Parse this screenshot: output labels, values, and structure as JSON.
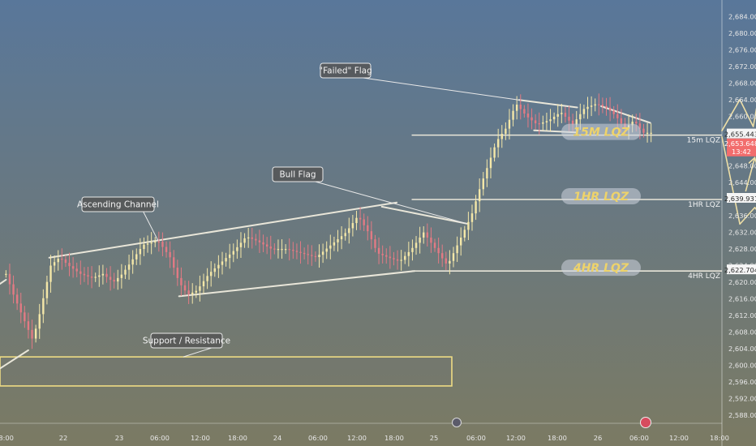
{
  "colors": {
    "bg_top": "#59779A",
    "bg_bottom": "#7B7A63",
    "up": "#F4E7A8",
    "down": "#E27A84",
    "line": "#E9E6D9",
    "lqz_label_bg": "#C5CDD8",
    "lqz_label_text": "#EED36A",
    "price_current": "#F26D6D",
    "axis_text": "#E7E7E7"
  },
  "chart_data": {
    "type": "candlestick",
    "ylim": [
      2586,
      2688
    ],
    "y_ticks": [
      "2,684.000",
      "2,680.000",
      "2,676.000",
      "2,672.000",
      "2,668.000",
      "2,664.000",
      "2,660.000",
      "2,656.000",
      "2,652.000",
      "2,648.000",
      "2,644.000",
      "2,640.000",
      "2,636.000",
      "2,632.000",
      "2,628.000",
      "2,624.000",
      "2,620.000",
      "2,616.000",
      "2,612.000",
      "2,608.000",
      "2,604.000",
      "2,600.000",
      "2,596.000",
      "2,592.000",
      "2,588.000"
    ],
    "y_tick_values": [
      2684,
      2680,
      2676,
      2672,
      2668,
      2664,
      2660,
      2656,
      2652,
      2648,
      2644,
      2640,
      2636,
      2632,
      2628,
      2624,
      2620,
      2616,
      2612,
      2608,
      2604,
      2600,
      2596,
      2592,
      2588
    ],
    "x_ticks": [
      "18:00",
      "22",
      "23",
      "06:00",
      "12:00",
      "18:00",
      "24",
      "06:00",
      "12:00",
      "18:00",
      "25",
      "06:00",
      "12:00",
      "18:00",
      "26",
      "06:00",
      "12:00",
      "18:00"
    ],
    "price_path": [
      {
        "x": 0.0,
        "y": 2622.0
      },
      {
        "x": 0.5,
        "y": 2617.0
      },
      {
        "x": 1.2,
        "y": 2611.0
      },
      {
        "x": 1.8,
        "y": 2606.0
      },
      {
        "x": 2.3,
        "y": 2613.0
      },
      {
        "x": 3.0,
        "y": 2624.0
      },
      {
        "x": 3.6,
        "y": 2626.0
      },
      {
        "x": 4.2,
        "y": 2624.0
      },
      {
        "x": 5.0,
        "y": 2622.0
      },
      {
        "x": 5.8,
        "y": 2621.0
      },
      {
        "x": 6.5,
        "y": 2622.0
      },
      {
        "x": 7.2,
        "y": 2620.0
      },
      {
        "x": 7.8,
        "y": 2622.0
      },
      {
        "x": 8.4,
        "y": 2625.0
      },
      {
        "x": 9.2,
        "y": 2629.0
      },
      {
        "x": 10.2,
        "y": 2630.0
      },
      {
        "x": 11.0,
        "y": 2626.0
      },
      {
        "x": 11.6,
        "y": 2620.0
      },
      {
        "x": 12.2,
        "y": 2617.0
      },
      {
        "x": 12.8,
        "y": 2618.0
      },
      {
        "x": 13.6,
        "y": 2622.0
      },
      {
        "x": 14.5,
        "y": 2625.0
      },
      {
        "x": 15.4,
        "y": 2628.0
      },
      {
        "x": 16.1,
        "y": 2631.0
      },
      {
        "x": 16.8,
        "y": 2630.0
      },
      {
        "x": 17.8,
        "y": 2628.0
      },
      {
        "x": 18.8,
        "y": 2628.0
      },
      {
        "x": 19.8,
        "y": 2627.0
      },
      {
        "x": 20.8,
        "y": 2626.0
      },
      {
        "x": 21.8,
        "y": 2629.0
      },
      {
        "x": 22.8,
        "y": 2632.0
      },
      {
        "x": 23.6,
        "y": 2636.0
      },
      {
        "x": 24.3,
        "y": 2632.0
      },
      {
        "x": 24.9,
        "y": 2627.0
      },
      {
        "x": 25.6,
        "y": 2626.0
      },
      {
        "x": 26.4,
        "y": 2625.0
      },
      {
        "x": 27.2,
        "y": 2628.0
      },
      {
        "x": 28.0,
        "y": 2632.0
      },
      {
        "x": 28.8,
        "y": 2628.0
      },
      {
        "x": 29.6,
        "y": 2624.0
      },
      {
        "x": 30.4,
        "y": 2630.0
      },
      {
        "x": 31.2,
        "y": 2636.0
      },
      {
        "x": 31.8,
        "y": 2643.0
      },
      {
        "x": 32.3,
        "y": 2648.0
      },
      {
        "x": 32.9,
        "y": 2654.0
      },
      {
        "x": 33.5,
        "y": 2657.0
      },
      {
        "x": 34.2,
        "y": 2663.0
      },
      {
        "x": 34.9,
        "y": 2660.0
      },
      {
        "x": 35.6,
        "y": 2658.0
      },
      {
        "x": 36.4,
        "y": 2659.0
      },
      {
        "x": 37.2,
        "y": 2661.0
      },
      {
        "x": 38.0,
        "y": 2658.0
      },
      {
        "x": 38.8,
        "y": 2662.0
      },
      {
        "x": 39.6,
        "y": 2663.0
      },
      {
        "x": 40.3,
        "y": 2662.0
      },
      {
        "x": 40.9,
        "y": 2660.0
      },
      {
        "x": 41.5,
        "y": 2657.0
      },
      {
        "x": 42.1,
        "y": 2659.0
      },
      {
        "x": 42.7,
        "y": 2656.0
      },
      {
        "x": 43.3,
        "y": 2656.0
      }
    ],
    "lines": [
      {
        "name": "ascending-channel-top",
        "points": [
          [
            2.9,
            2625.9
          ],
          [
            26.2,
            2639.2
          ]
        ]
      },
      {
        "name": "ascending-channel-bottom",
        "points": [
          [
            11.6,
            2616.6
          ],
          [
            27.4,
            2622.7
          ]
        ]
      },
      {
        "name": "bull-flag-top",
        "points": [
          [
            25.2,
            2638.2
          ],
          [
            30.9,
            2634.1
          ]
        ]
      },
      {
        "name": "failed-flag-top",
        "points": [
          [
            34.4,
            2663.9
          ],
          [
            38.3,
            2662.1
          ]
        ]
      },
      {
        "name": "failed-flag-bottom",
        "points": [
          [
            35.4,
            2656.6
          ],
          [
            38.2,
            2656.1
          ]
        ]
      },
      {
        "name": "failed-flag-right-top",
        "points": [
          [
            39.9,
            2662.4
          ],
          [
            43.2,
            2658.4
          ]
        ]
      },
      {
        "name": "support-line",
        "points": [
          [
            -0.4,
            2599.2
          ],
          [
            1.5,
            2603.6
          ]
        ]
      },
      {
        "name": "support-line-lower",
        "points": [
          [
            -0.4,
            2619.6
          ],
          [
            0.0,
            2620.6
          ]
        ]
      }
    ],
    "projections": [
      {
        "name": "up-path",
        "points": [
          [
            48.0,
            2656.5
          ],
          [
            49.2,
            2664.0
          ],
          [
            50.1,
            2657.5
          ],
          [
            51.0,
            2675.5
          ]
        ]
      },
      {
        "name": "mid-path",
        "points": [
          [
            48.0,
            2655.0
          ],
          [
            49.2,
            2634.0
          ],
          [
            50.2,
            2638.0
          ],
          [
            50.9,
            2635.0
          ],
          [
            51.5,
            2637.0
          ],
          [
            52.4,
            2622.5
          ]
        ]
      },
      {
        "name": "mid-up-arrow",
        "points": [
          [
            49.6,
            2642.0
          ],
          [
            50.2,
            2650.0
          ]
        ]
      }
    ],
    "lqz_levels": [
      {
        "label": "15M LQZ",
        "value": 2655.443,
        "value_label": "2,655.443",
        "axis_text": "15m LQZ"
      },
      {
        "label": "1HR LQZ",
        "value": 2639.931,
        "value_label": "2,639.931",
        "axis_text": "1HR LQZ"
      },
      {
        "label": "4HR LQZ",
        "value": 2622.704,
        "value_label": "2,622.704",
        "axis_text": "4HR LQZ"
      }
    ],
    "current_price": {
      "value": 2653.648,
      "value_label": "2,653.648",
      "time_label": "13:42"
    },
    "annotations": [
      {
        "text": "\"Failed\" Flag"
      },
      {
        "text": "Bull Flag"
      },
      {
        "text": "Ascending Channel"
      },
      {
        "text": "Support / Resistance"
      }
    ],
    "zones": [
      {
        "name": "support-resistance-zone",
        "y": [
          2595.0,
          2602.0
        ]
      }
    ]
  }
}
